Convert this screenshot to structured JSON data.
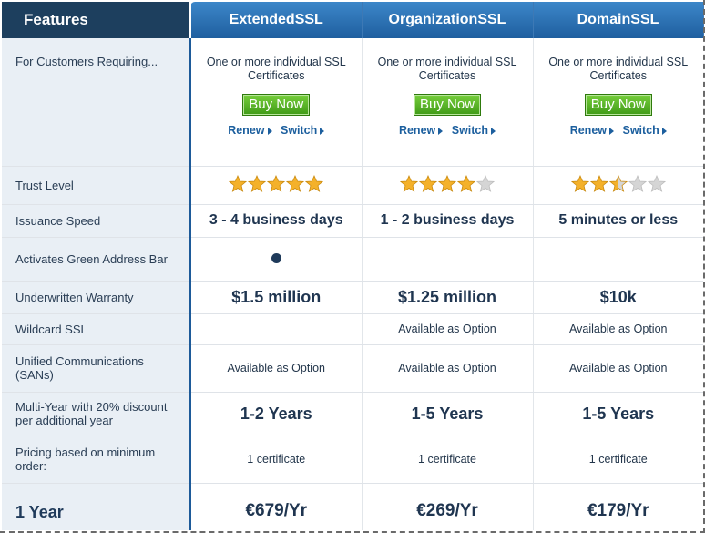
{
  "header": {
    "features_label": "Features",
    "plans": [
      "ExtendedSSL",
      "OrganizationSSL",
      "DomainSSL"
    ]
  },
  "rows": {
    "customers": {
      "label": "For Customers Requiring...",
      "values": [
        "One or more individual SSL Certificates",
        "One or more individual SSL Certificates",
        "One or more individual SSL Certificates"
      ],
      "buy_label": "Buy Now",
      "renew_label": "Renew",
      "switch_label": "Switch"
    },
    "trust": {
      "label": "Trust Level",
      "ratings": [
        5,
        4,
        2.5
      ],
      "max": 5
    },
    "speed": {
      "label": "Issuance Speed",
      "values": [
        "3 - 4 business days",
        "1 - 2 business days",
        "5 minutes or less"
      ]
    },
    "green_bar": {
      "label": "Activates Green Address Bar",
      "values": [
        true,
        false,
        false
      ]
    },
    "warranty": {
      "label": "Underwritten Warranty",
      "values": [
        "$1.5 million",
        "$1.25 million",
        "$10k"
      ]
    },
    "wildcard": {
      "label": "Wildcard SSL",
      "values": [
        "",
        "Available as Option",
        "Available as Option"
      ]
    },
    "unified": {
      "label": "Unified Communications (SANs)",
      "values": [
        "Available as Option",
        "Available as Option",
        "Available as Option"
      ]
    },
    "multiyear": {
      "label": "Multi-Year with 20% discount per additional year",
      "values": [
        "1-2 Years",
        "1-5 Years",
        "1-5 Years"
      ]
    },
    "pricing": {
      "label": "Pricing based on minimum order:",
      "values": [
        "1 certificate",
        "1 certificate",
        "1 certificate"
      ]
    },
    "year": {
      "label": "1 Year",
      "values": [
        "€679/Yr",
        "€269/Yr",
        "€179/Yr"
      ]
    }
  },
  "colors": {
    "header_dark": "#1d3f5e",
    "header_blue": "#2a6db0",
    "buy_green": "#4aa51e",
    "link_blue": "#1c5f9e",
    "star_gold": "#f4b12a",
    "star_empty": "#d5d5d5"
  }
}
